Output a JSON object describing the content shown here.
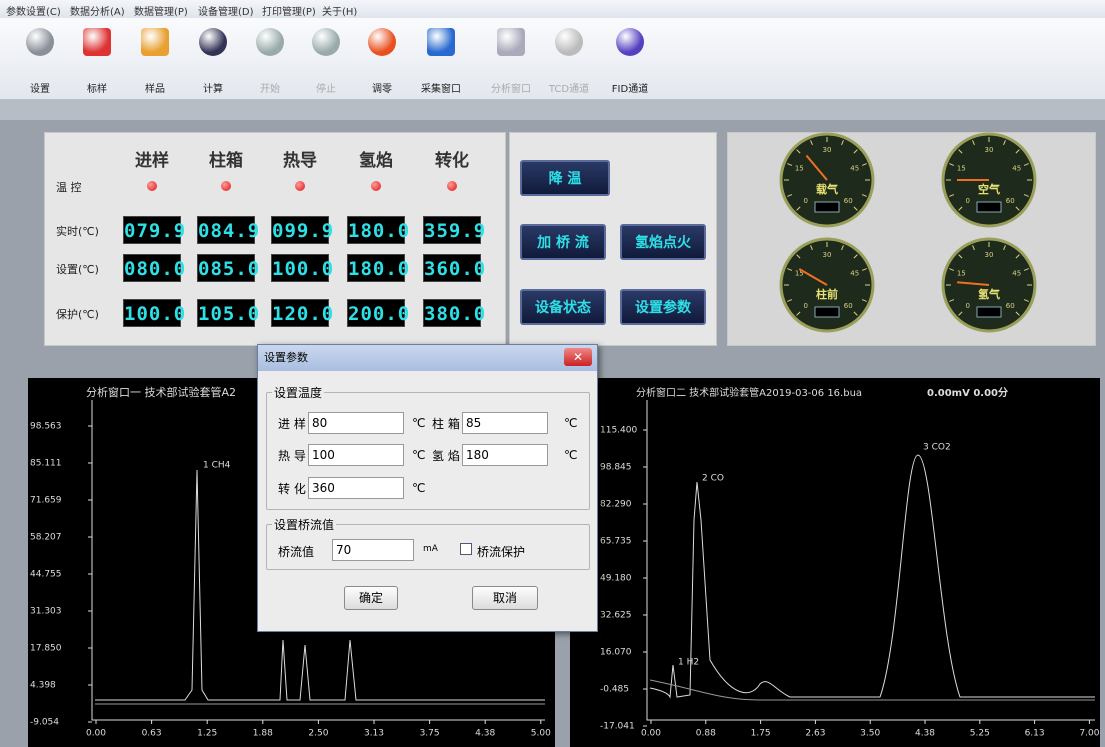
{
  "menu": [
    "参数设置(C)",
    "数据分析(A)",
    "数据管理(P)",
    "设备管理(D)",
    "打印管理(P)",
    "关于(H)"
  ],
  "toolbar": [
    "设置",
    "标样",
    "样品",
    "计算",
    "开始",
    "停止",
    "调零",
    "采集窗口",
    "分析窗口",
    "TCD通道",
    "FID通道"
  ],
  "panel": {
    "columns": [
      "进样",
      "柱箱",
      "热导",
      "氢焰",
      "转化"
    ],
    "row_labels": [
      "温 控",
      "实时(℃)",
      "设置(℃)",
      "保护(℃)"
    ],
    "rows": [
      [
        "079.9",
        "084.9",
        "099.9",
        "180.0",
        "359.9"
      ],
      [
        "080.0",
        "085.0",
        "100.0",
        "180.0",
        "360.0"
      ],
      [
        "100.0",
        "105.0",
        "120.0",
        "200.0",
        "380.0"
      ]
    ]
  },
  "buttons": [
    "降 温",
    "加 桥 流",
    "氢焰点火",
    "设备状态",
    "设置参数"
  ],
  "gauges": {
    "labels": [
      "载气",
      "空气",
      "柱前",
      "氢气"
    ],
    "scale": [
      "0",
      "15",
      "30",
      "45",
      "60"
    ]
  },
  "chart1": {
    "title": "分析窗口一 技术部试验套管A2",
    "yticks": [
      "98.563",
      "85.111",
      "71.659",
      "58.207",
      "44.755",
      "31.303",
      "17.850",
      "4.398",
      "-9.054"
    ],
    "xticks": [
      "0.00",
      "0.63",
      "1.25",
      "1.88",
      "2.50",
      "3.13",
      "3.75",
      "4.38",
      "5.00"
    ],
    "peaks": [
      "1 CH4"
    ]
  },
  "chart2": {
    "title": "分析窗口二 技术部试验套管A2019-03-06 16.bua",
    "status": "0.00mV 0.00分",
    "yticks": [
      "115.400",
      "98.845",
      "82.290",
      "65.735",
      "49.180",
      "32.625",
      "16.070",
      "-0.485",
      "-17.041"
    ],
    "xticks": [
      "0.00",
      "0.88",
      "1.75",
      "2.63",
      "3.50",
      "4.38",
      "5.25",
      "6.13",
      "7.00"
    ],
    "peaks": [
      "1 H2",
      "2 CO",
      "3 CO2"
    ]
  },
  "dialog": {
    "title": "设置参数",
    "temp_group": "设置温度",
    "fields": [
      {
        "label": "进 样",
        "value": "80",
        "unit": "℃"
      },
      {
        "label": "柱 箱",
        "value": "85",
        "unit": "℃"
      },
      {
        "label": "热 导",
        "value": "100",
        "unit": "℃"
      },
      {
        "label": "氢 焰",
        "value": "180",
        "unit": "℃"
      },
      {
        "label": "转 化",
        "value": "360",
        "unit": "℃"
      }
    ],
    "current_group": "设置桥流值",
    "current": {
      "label": "桥流值",
      "value": "70",
      "unit": "mA"
    },
    "checkbox": "桥流保护",
    "ok": "确定",
    "cancel": "取消"
  }
}
